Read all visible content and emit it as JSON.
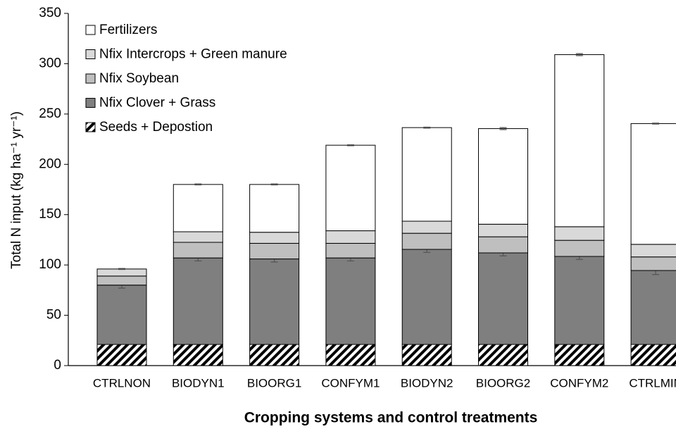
{
  "chart_data": {
    "type": "stacked_bar",
    "x_label": "Cropping systems and control treatments",
    "y_label": "Total N input (kg ha⁻¹ yr⁻¹)",
    "categories": [
      "CTRLNON",
      "BIODYN1",
      "BIOORG1",
      "CONFYM1",
      "BIODYN2",
      "BIOORG2",
      "CONFYM2",
      "CTRLMIN"
    ],
    "series": [
      {
        "name": "Seeds + Depostion",
        "color": "#000000",
        "hatch": true,
        "values": [
          21,
          21,
          21,
          21,
          21,
          21,
          21,
          21
        ]
      },
      {
        "name": "Nfix Clover + Grass",
        "color": "#7f7f7f",
        "values": [
          59,
          86,
          85,
          86,
          94.5,
          91,
          87.5,
          73.5
        ],
        "errors": [
          3,
          3,
          3,
          3,
          3,
          3,
          3,
          4
        ]
      },
      {
        "name": "Nfix Soybean",
        "color": "#bfbfbf",
        "values": [
          9,
          15.5,
          15.5,
          14.5,
          16,
          16,
          16,
          13.5
        ]
      },
      {
        "name": "Nfix Intercrops + Green manure",
        "color": "#d9d9d9",
        "values": [
          7,
          10.5,
          11,
          12.5,
          12,
          12.5,
          13.5,
          12.5
        ]
      },
      {
        "name": "Fertilizers",
        "color": "#ffffff",
        "values": [
          0,
          47,
          47.5,
          85,
          93,
          95,
          171,
          120
        ],
        "errors": [
          0.5,
          0.5,
          0.5,
          0.5,
          0.5,
          1,
          1,
          0.5
        ]
      }
    ],
    "ylim": [
      0,
      350
    ],
    "yticks": [
      0,
      50,
      100,
      150,
      200,
      250,
      300,
      350
    ]
  }
}
